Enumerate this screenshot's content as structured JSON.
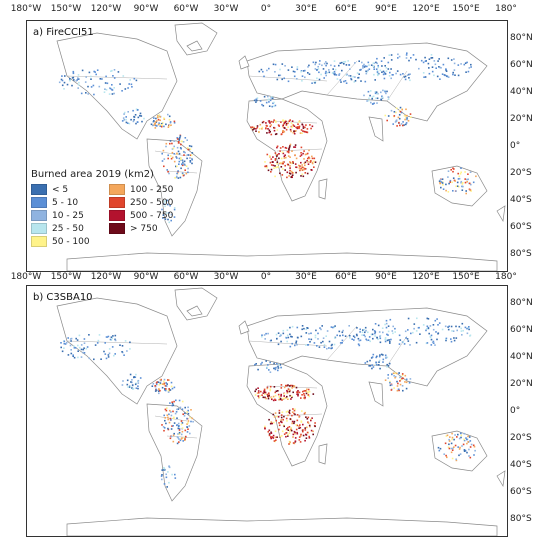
{
  "panels": [
    {
      "id": "a",
      "title": "a) FireCCI51"
    },
    {
      "id": "b",
      "title": "b) C3SBA10"
    }
  ],
  "longitude_labels": [
    "180°W",
    "150°W",
    "120°W",
    "90°W",
    "60°W",
    "30°W",
    "0°",
    "30°E",
    "60°E",
    "90°E",
    "120°E",
    "150°E",
    "180°"
  ],
  "latitude_labels": [
    "80°N",
    "60°N",
    "40°N",
    "20°N",
    "0°",
    "20°S",
    "40°S",
    "60°S",
    "80°S"
  ],
  "legend": {
    "title": "Burned area 2019 (km2)",
    "items": [
      {
        "label": "< 5",
        "color": "#3a6fb0"
      },
      {
        "label": "5 - 10",
        "color": "#5b8fd6"
      },
      {
        "label": "10 - 25",
        "color": "#8fb3e0"
      },
      {
        "label": "25 - 50",
        "color": "#b8e6ee"
      },
      {
        "label": "50 - 100",
        "color": "#fff38a"
      },
      {
        "label": "100 - 250",
        "color": "#f4a75c"
      },
      {
        "label": "250 - 500",
        "color": "#e0462d"
      },
      {
        "label": "500 - 750",
        "color": "#b3122e"
      },
      {
        "label": "> 750",
        "color": "#6e0a1a"
      }
    ]
  }
}
